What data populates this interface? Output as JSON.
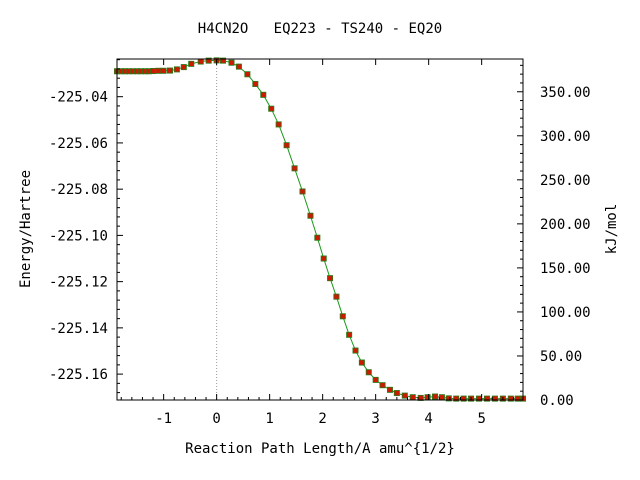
{
  "chart_data": {
    "type": "line",
    "title": "H4CN2O   EQ223 - TS240 - EQ20",
    "xlabel": "Reaction Path Length/A amu^{1/2}",
    "ylabel": "Energy/Hartree",
    "y2label": "kJ/mol",
    "xlim": [
      -1.88,
      5.78
    ],
    "ylim": [
      -225.1712,
      -225.0237
    ],
    "y2lim": [
      0.0,
      387.2
    ],
    "x_ticks": [
      -1,
      0,
      1,
      2,
      3,
      4,
      5
    ],
    "x_tick_labels": [
      "-1",
      "0",
      "1",
      "2",
      "3",
      "4",
      "5"
    ],
    "y_ticks": [
      -225.04,
      -225.06,
      -225.08,
      -225.1,
      -225.12,
      -225.14,
      -225.16
    ],
    "y_tick_labels": [
      "-225.04",
      "-225.06",
      "-225.08",
      "-225.10",
      "-225.12",
      "-225.14",
      "-225.16"
    ],
    "y2_ticks": [
      350,
      300,
      250,
      200,
      150,
      100,
      50,
      0
    ],
    "y2_tick_labels": [
      "350.00",
      "300.00",
      "250.00",
      "200.00",
      "150.00",
      "100.00",
      "50.00",
      "0.00"
    ],
    "ts_x": 0,
    "line_color": "#1a9a1a",
    "marker_color": "#cc1a00",
    "marker_edge_color": "#2a7a1a",
    "ts_line_color": "#999999",
    "series": [
      {
        "points": [
          [
            -1.88,
            -225.029
          ],
          [
            -1.8,
            -225.029
          ],
          [
            -1.73,
            -225.029
          ],
          [
            -1.66,
            -225.029
          ],
          [
            -1.58,
            -225.029
          ],
          [
            -1.5,
            -225.029
          ],
          [
            -1.43,
            -225.029
          ],
          [
            -1.35,
            -225.029
          ],
          [
            -1.28,
            -225.029
          ],
          [
            -1.2,
            -225.0289
          ],
          [
            -1.1,
            -225.0288
          ],
          [
            -1.0,
            -225.0288
          ],
          [
            -0.88,
            -225.0287
          ],
          [
            -0.75,
            -225.0282
          ],
          [
            -0.62,
            -225.0272
          ],
          [
            -0.48,
            -225.0258
          ],
          [
            -0.3,
            -225.0248
          ],
          [
            -0.15,
            -225.0244
          ],
          [
            0.0,
            -225.0243
          ],
          [
            0.12,
            -225.0244
          ],
          [
            0.28,
            -225.0253
          ],
          [
            0.42,
            -225.027
          ],
          [
            0.58,
            -225.0303
          ],
          [
            0.73,
            -225.0345
          ],
          [
            0.88,
            -225.0392
          ],
          [
            1.03,
            -225.0452
          ],
          [
            1.17,
            -225.052
          ],
          [
            1.32,
            -225.061
          ],
          [
            1.47,
            -225.071
          ],
          [
            1.62,
            -225.081
          ],
          [
            1.77,
            -225.0915
          ],
          [
            1.9,
            -225.101
          ],
          [
            2.02,
            -225.11
          ],
          [
            2.14,
            -225.1185
          ],
          [
            2.26,
            -225.1265
          ],
          [
            2.38,
            -225.135
          ],
          [
            2.5,
            -225.143
          ],
          [
            2.62,
            -225.1498
          ],
          [
            2.74,
            -225.155
          ],
          [
            2.87,
            -225.1592
          ],
          [
            3.0,
            -225.1625
          ],
          [
            3.13,
            -225.1648
          ],
          [
            3.27,
            -225.1668
          ],
          [
            3.4,
            -225.1682
          ],
          [
            3.55,
            -225.1693
          ],
          [
            3.7,
            -225.17
          ],
          [
            3.85,
            -225.1703
          ],
          [
            3.98,
            -225.17
          ],
          [
            4.12,
            -225.1697
          ],
          [
            4.25,
            -225.17
          ],
          [
            4.38,
            -225.1705
          ],
          [
            4.52,
            -225.1706
          ],
          [
            4.66,
            -225.1706
          ],
          [
            4.8,
            -225.1706
          ],
          [
            4.95,
            -225.1706
          ],
          [
            5.1,
            -225.1706
          ],
          [
            5.25,
            -225.1706
          ],
          [
            5.4,
            -225.1706
          ],
          [
            5.55,
            -225.1706
          ],
          [
            5.68,
            -225.1706
          ],
          [
            5.78,
            -225.1706
          ]
        ]
      }
    ]
  }
}
